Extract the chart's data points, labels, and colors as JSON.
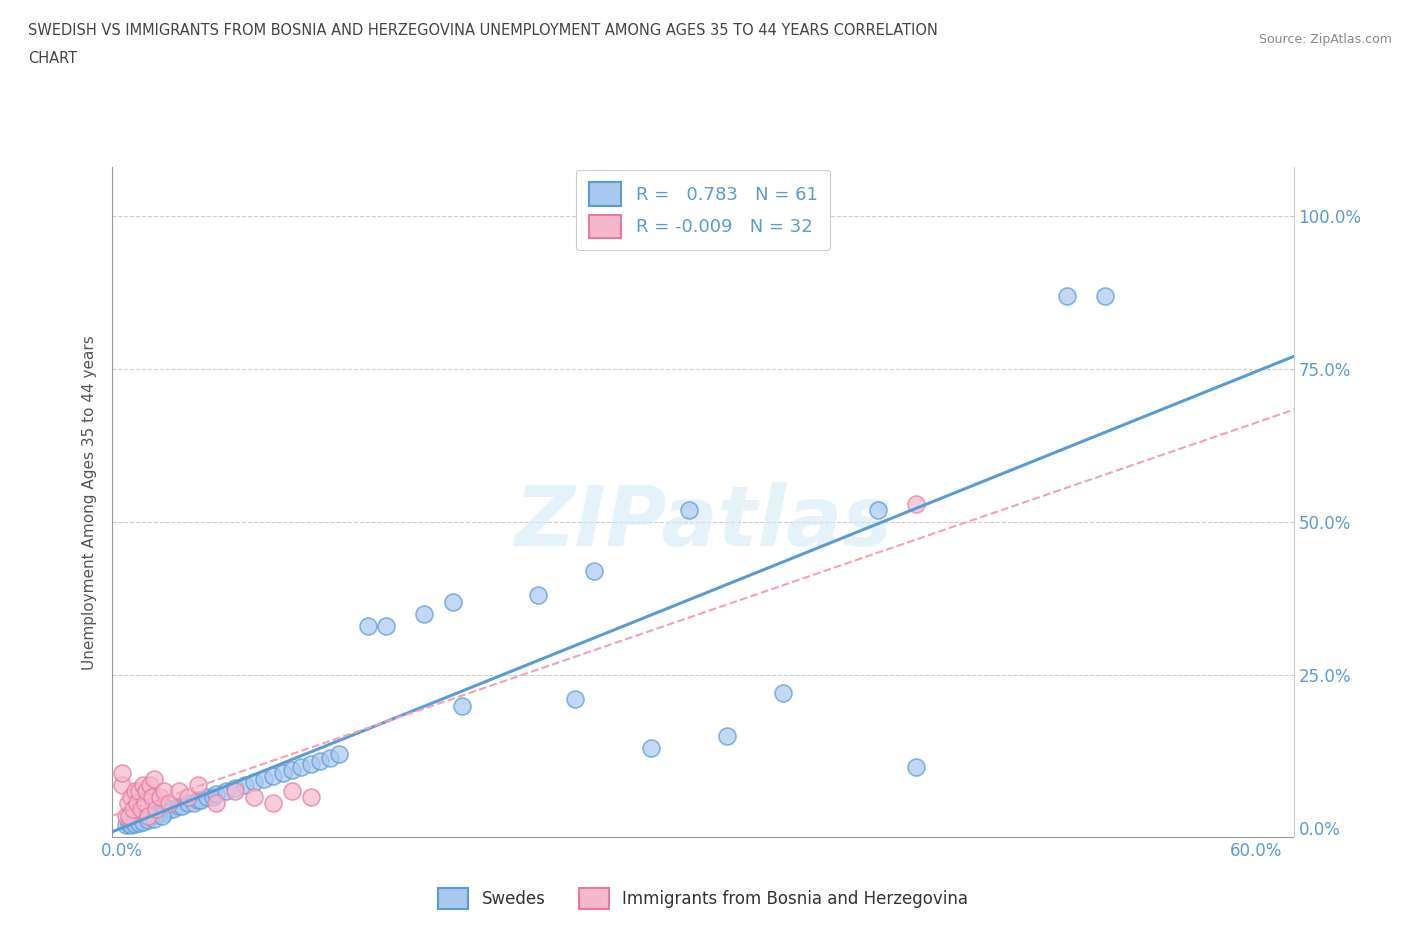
{
  "title_line1": "SWEDISH VS IMMIGRANTS FROM BOSNIA AND HERZEGOVINA UNEMPLOYMENT AMONG AGES 35 TO 44 YEARS CORRELATION",
  "title_line2": "CHART",
  "source": "Source: ZipAtlas.com",
  "ylabel": "Unemployment Among Ages 35 to 44 years",
  "xlim": [
    -0.005,
    0.62
  ],
  "ylim": [
    -0.015,
    1.08
  ],
  "xticks": [
    0.0,
    0.1,
    0.2,
    0.3,
    0.4,
    0.5,
    0.6
  ],
  "xticklabels": [
    "0.0%",
    "",
    "",
    "",
    "",
    "",
    "60.0%"
  ],
  "ytick_positions": [
    0.0,
    0.25,
    0.5,
    0.75,
    1.0
  ],
  "yticklabels_right": [
    "0.0%",
    "25.0%",
    "50.0%",
    "75.0%",
    "100.0%"
  ],
  "swedes_fill": "#a8c8f0",
  "swedes_edge": "#5b9bd5",
  "immigrants_fill": "#f5b8ce",
  "immigrants_edge": "#e87aa0",
  "swedes_line_color": "#5b9bd5",
  "immigrants_line_color": "#f4a0b8",
  "tick_color": "#5b9bd5",
  "legend_swedes_label": "R =   0.783   N = 61",
  "legend_immigrants_label": "R = -0.009   N = 32",
  "bottom_legend_swedes": "Swedes",
  "bottom_legend_immigrants": "Immigrants from Bosnia and Herzegovina",
  "watermark_color": "#d5eaf8"
}
